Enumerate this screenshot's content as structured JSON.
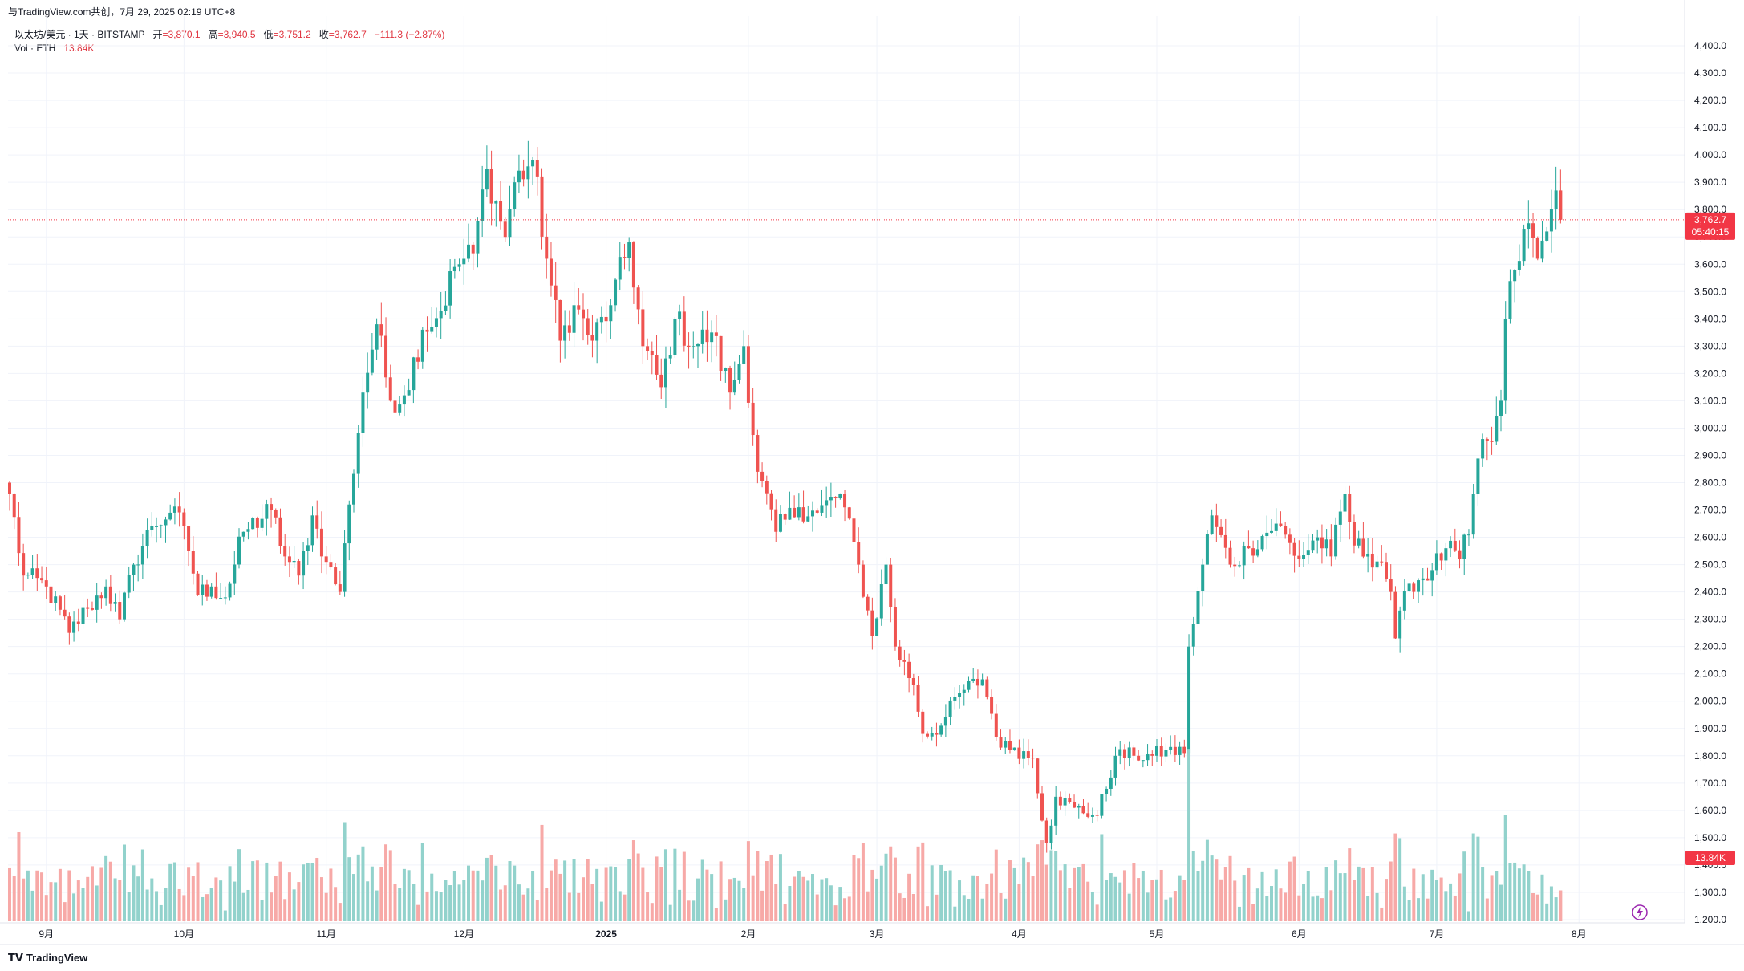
{
  "header": {
    "published": "与TradingView.com共创，7月 29, 2025 02:19 UTC+8",
    "symbol": "以太坊/美元 · 1天 · BITSTAMP",
    "open_label": "开",
    "open_value": "=3,870.1",
    "high_label": "高",
    "high_value": "=3,940.5",
    "low_label": "低",
    "low_value": "=3,751.2",
    "close_label": "收",
    "close_value": "=3,762.7",
    "change": "−111.3 (−2.87%)",
    "vol_label": "Vol · ETH",
    "vol_value": "13.84K"
  },
  "footer": {
    "brand": "TradingView"
  },
  "colors": {
    "up": "#26a69a",
    "down": "#ef5350",
    "vol_up": "#92d2cc",
    "vol_down": "#f7a9a7",
    "price_line": "#f23645"
  },
  "chart_data": {
    "type": "candlestick",
    "title": "以太坊/美元 · 1天 · BITSTAMP",
    "ylim": [
      1150,
      4450
    ],
    "y_ticks": [
      1200,
      1300,
      1400,
      1500,
      1600,
      1700,
      1800,
      1900,
      2000,
      2100,
      2200,
      2300,
      2400,
      2500,
      2600,
      2700,
      2800,
      2900,
      3000,
      3100,
      3200,
      3300,
      3400,
      3500,
      3600,
      3700,
      3800,
      3900,
      4000,
      4100,
      4200,
      4300,
      4400
    ],
    "y_tick_labels": [
      "1,200.0",
      "1,300.0",
      "1,400.0",
      "1,500.0",
      "1,600.0",
      "1,700.0",
      "1,800.0",
      "1,900.0",
      "2,000.0",
      "2,100.0",
      "2,200.0",
      "2,300.0",
      "2,400.0",
      "2,500.0",
      "2,600.0",
      "2,700.0",
      "2,800.0",
      "2,900.0",
      "3,000.0",
      "3,100.0",
      "3,200.0",
      "3,300.0",
      "3,400.0",
      "3,500.0",
      "3,600.0",
      "3,700.0",
      "3,800.0",
      "3,900.0",
      "4,000.0",
      "4,100.0",
      "4,200.0",
      "4,300.0",
      "4,400.0"
    ],
    "x_labels": [
      {
        "label": "9月",
        "date": "2024-09-01"
      },
      {
        "label": "10月",
        "date": "2024-10-01"
      },
      {
        "label": "11月",
        "date": "2024-11-01"
      },
      {
        "label": "12月",
        "date": "2024-12-01"
      },
      {
        "label": "2025",
        "date": "2025-01-01"
      },
      {
        "label": "2月",
        "date": "2025-02-01"
      },
      {
        "label": "3月",
        "date": "2025-03-01"
      },
      {
        "label": "4月",
        "date": "2025-04-01"
      },
      {
        "label": "5月",
        "date": "2025-05-01"
      },
      {
        "label": "6月",
        "date": "2025-06-01"
      },
      {
        "label": "7月",
        "date": "2025-07-01"
      },
      {
        "label": "8月",
        "date": "2025-08-01"
      }
    ],
    "start_date": "2024-08-24",
    "last_price": 3762.7,
    "last_price_label": "3,762.7",
    "countdown": "05:40:15",
    "vol_last_label": "13.84K",
    "close_anchors": [
      [
        "2024-08-24",
        2760
      ],
      [
        "2024-08-27",
        2460
      ],
      [
        "2024-09-01",
        2420
      ],
      [
        "2024-09-06",
        2250
      ],
      [
        "2024-09-10",
        2340
      ],
      [
        "2024-09-14",
        2420
      ],
      [
        "2024-09-17",
        2300
      ],
      [
        "2024-09-20",
        2500
      ],
      [
        "2024-09-24",
        2640
      ],
      [
        "2024-09-28",
        2690
      ],
      [
        "2024-10-01",
        2640
      ],
      [
        "2024-10-04",
        2390
      ],
      [
        "2024-10-07",
        2420
      ],
      [
        "2024-10-10",
        2380
      ],
      [
        "2024-10-14",
        2620
      ],
      [
        "2024-10-20",
        2700
      ],
      [
        "2024-10-23",
        2530
      ],
      [
        "2024-10-26",
        2460
      ],
      [
        "2024-10-29",
        2680
      ],
      [
        "2024-11-01",
        2510
      ],
      [
        "2024-11-04",
        2400
      ],
      [
        "2024-11-06",
        2720
      ],
      [
        "2024-11-09",
        3130
      ],
      [
        "2024-11-12",
        3380
      ],
      [
        "2024-11-15",
        3100
      ],
      [
        "2024-11-18",
        3120
      ],
      [
        "2024-11-22",
        3360
      ],
      [
        "2024-11-26",
        3430
      ],
      [
        "2024-11-29",
        3590
      ],
      [
        "2024-12-03",
        3640
      ],
      [
        "2024-12-06",
        3950
      ],
      [
        "2024-12-10",
        3700
      ],
      [
        "2024-12-12",
        3900
      ],
      [
        "2024-12-16",
        3980
      ],
      [
        "2024-12-19",
        3620
      ],
      [
        "2024-12-22",
        3320
      ],
      [
        "2024-12-25",
        3450
      ],
      [
        "2024-12-29",
        3320
      ],
      [
        "2025-01-02",
        3450
      ],
      [
        "2025-01-06",
        3680
      ],
      [
        "2025-01-09",
        3300
      ],
      [
        "2025-01-13",
        3150
      ],
      [
        "2025-01-16",
        3400
      ],
      [
        "2025-01-20",
        3300
      ],
      [
        "2025-01-24",
        3350
      ],
      [
        "2025-01-28",
        3130
      ],
      [
        "2025-01-31",
        3300
      ],
      [
        "2025-02-03",
        2840
      ],
      [
        "2025-02-07",
        2620
      ],
      [
        "2025-02-12",
        2710
      ],
      [
        "2025-02-16",
        2690
      ],
      [
        "2025-02-21",
        2760
      ],
      [
        "2025-02-25",
        2500
      ],
      [
        "2025-02-28",
        2240
      ],
      [
        "2025-03-03",
        2500
      ],
      [
        "2025-03-05",
        2200
      ],
      [
        "2025-03-09",
        2060
      ],
      [
        "2025-03-11",
        1880
      ],
      [
        "2025-03-15",
        1910
      ],
      [
        "2025-03-19",
        2030
      ],
      [
        "2025-03-24",
        2080
      ],
      [
        "2025-03-28",
        1830
      ],
      [
        "2025-03-31",
        1830
      ],
      [
        "2025-04-04",
        1790
      ],
      [
        "2025-04-07",
        1480
      ],
      [
        "2025-04-09",
        1650
      ],
      [
        "2025-04-13",
        1610
      ],
      [
        "2025-04-18",
        1580
      ],
      [
        "2025-04-22",
        1800
      ],
      [
        "2025-04-26",
        1800
      ],
      [
        "2025-04-30",
        1800
      ],
      [
        "2025-05-03",
        1820
      ],
      [
        "2025-05-07",
        1810
      ],
      [
        "2025-05-08",
        2200
      ],
      [
        "2025-05-11",
        2500
      ],
      [
        "2025-05-13",
        2680
      ],
      [
        "2025-05-17",
        2500
      ],
      [
        "2025-05-21",
        2560
      ],
      [
        "2025-05-27",
        2650
      ],
      [
        "2025-06-01",
        2520
      ],
      [
        "2025-06-05",
        2600
      ],
      [
        "2025-06-08",
        2530
      ],
      [
        "2025-06-11",
        2760
      ],
      [
        "2025-06-13",
        2570
      ],
      [
        "2025-06-16",
        2540
      ],
      [
        "2025-06-19",
        2510
      ],
      [
        "2025-06-21",
        2400
      ],
      [
        "2025-06-22",
        2230
      ],
      [
        "2025-06-25",
        2430
      ],
      [
        "2025-06-30",
        2480
      ],
      [
        "2025-07-03",
        2560
      ],
      [
        "2025-07-06",
        2520
      ],
      [
        "2025-07-08",
        2610
      ],
      [
        "2025-07-09",
        2760
      ],
      [
        "2025-07-11",
        2960
      ],
      [
        "2025-07-13",
        2950
      ],
      [
        "2025-07-15",
        3100
      ],
      [
        "2025-07-16",
        3400
      ],
      [
        "2025-07-18",
        3580
      ],
      [
        "2025-07-21",
        3750
      ],
      [
        "2025-07-23",
        3620
      ],
      [
        "2025-07-25",
        3720
      ],
      [
        "2025-07-27",
        3870
      ],
      [
        "2025-07-28",
        3763
      ]
    ],
    "volume_note": "Volume bars (ETH) shown in lower pane, colored by candle direction"
  }
}
